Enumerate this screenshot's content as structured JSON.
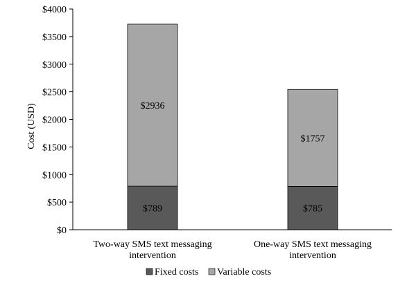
{
  "chart_data": {
    "type": "bar",
    "stacked": true,
    "categories": [
      [
        "Two-way SMS text messaging",
        "intervention"
      ],
      [
        "One-way SMS text messaging",
        "intervention"
      ]
    ],
    "series": [
      {
        "name": "Fixed costs",
        "values": [
          789,
          785
        ],
        "labels": [
          "$789",
          "$785"
        ],
        "color": "#595959"
      },
      {
        "name": "Variable costs",
        "values": [
          2936,
          1757
        ],
        "labels": [
          "$2936",
          "$1757"
        ],
        "color": "#a6a6a6"
      }
    ],
    "ylabel": "Cost (USD)",
    "ylim": [
      0,
      4000
    ],
    "yticks": [
      0,
      500,
      1000,
      1500,
      2000,
      2500,
      3000,
      3500,
      4000
    ],
    "ytick_labels": [
      "$0",
      "$500",
      "$1000",
      "$1500",
      "$2000",
      "$2500",
      "$3000",
      "$3500",
      "$4000"
    ],
    "legend_position": "bottom",
    "grid": false
  }
}
